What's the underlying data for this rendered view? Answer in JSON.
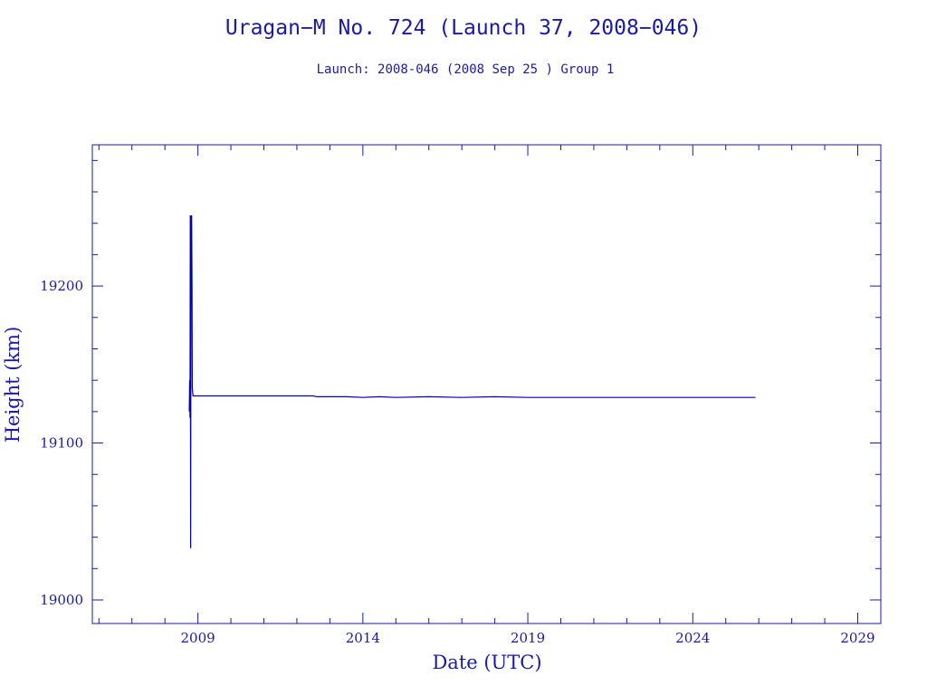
{
  "chart_data": {
    "type": "line",
    "title": "Uragan−M No. 724 (Launch 37, 2008−046)",
    "subtitle": "Launch: 2008-046  (2008 Sep 25 )  Group 1",
    "xlabel": "Date (UTC)",
    "ylabel": "Height (km)",
    "xlim": [
      2005.8,
      2029.7
    ],
    "ylim": [
      18985,
      19290
    ],
    "x_ticks": [
      2009,
      2014,
      2019,
      2024,
      2029
    ],
    "y_ticks": [
      19000,
      19100,
      19200
    ],
    "x_minor_step": 1,
    "y_minor_step": 20,
    "grid": false,
    "legend": "none",
    "colors": {
      "axis": "#1a1aa6",
      "line": "#0000b3"
    },
    "series": [
      {
        "points": [
          [
            2008.74,
            19120
          ],
          [
            2008.75,
            19140
          ],
          [
            2008.76,
            19116
          ],
          [
            2008.77,
            19245
          ],
          [
            2008.78,
            19033
          ],
          [
            2008.79,
            19245
          ],
          [
            2008.8,
            19190
          ],
          [
            2008.81,
            19245
          ],
          [
            2008.82,
            19200
          ],
          [
            2008.83,
            19135
          ],
          [
            2008.85,
            19130
          ],
          [
            2009.0,
            19130
          ],
          [
            2012.5,
            19130
          ],
          [
            2012.6,
            19129.5
          ],
          [
            2013.5,
            19129.5
          ],
          [
            2014.0,
            19129
          ],
          [
            2014.5,
            19129.5
          ],
          [
            2015.0,
            19129
          ],
          [
            2016.0,
            19129.5
          ],
          [
            2017.0,
            19129
          ],
          [
            2018.0,
            19129.5
          ],
          [
            2019.0,
            19129
          ],
          [
            2020.0,
            19129
          ],
          [
            2021.0,
            19129
          ],
          [
            2022.0,
            19129
          ],
          [
            2023.0,
            19129
          ],
          [
            2024.0,
            19129
          ],
          [
            2025.0,
            19129
          ],
          [
            2025.9,
            19129
          ]
        ]
      }
    ]
  }
}
